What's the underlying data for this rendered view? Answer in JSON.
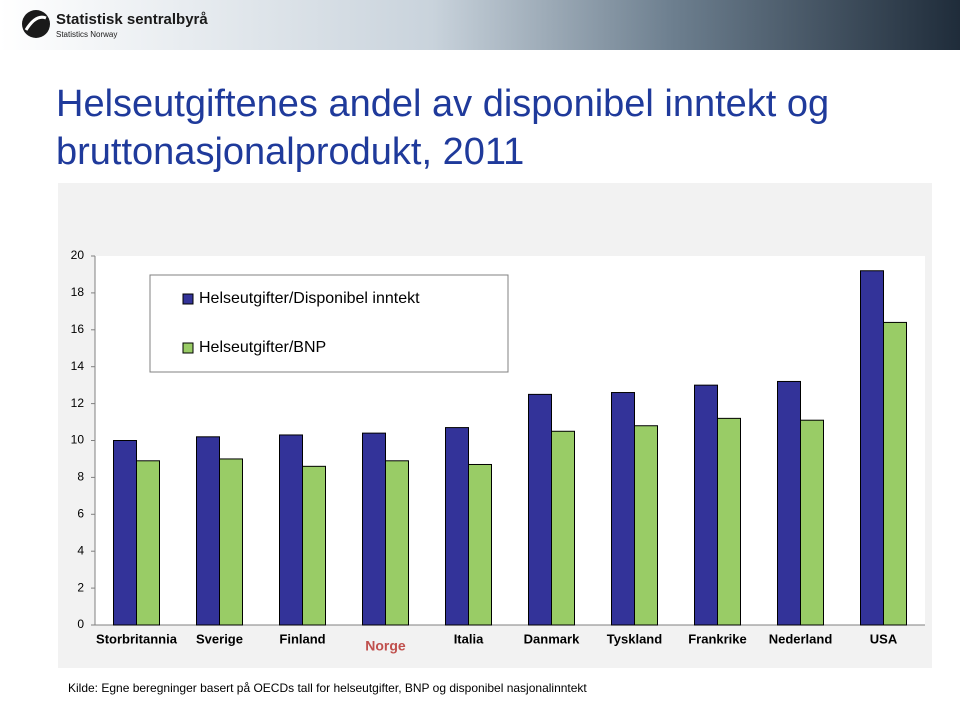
{
  "header": {
    "org_name": "Statistisk sentralbyrå",
    "org_name_en": "Statistics Norway"
  },
  "chart_data": {
    "type": "bar",
    "title": "Helseutgiftenes andel av disponibel inntekt og bruttonasjonalprodukt, 2011",
    "categories": [
      "Storbritannia",
      "Sverige",
      "Finland",
      "Norge",
      "Italia",
      "Danmark",
      "Tyskland",
      "Frankrike",
      "Nederland",
      "USA"
    ],
    "series": [
      {
        "name": "Helseutgifter/Disponibel inntekt",
        "color": "#333399",
        "values": [
          10.0,
          10.2,
          10.3,
          10.4,
          10.7,
          12.5,
          12.6,
          13.0,
          13.2,
          19.2
        ]
      },
      {
        "name": "Helseutgifter/BNP",
        "color": "#99cc66",
        "values": [
          8.9,
          9.0,
          8.6,
          8.9,
          8.7,
          10.5,
          10.8,
          11.2,
          11.1,
          16.4
        ]
      }
    ],
    "highlight": {
      "category": "Norge",
      "color": "#c0504d"
    },
    "ylim": [
      0,
      20
    ],
    "yticks": [
      0,
      2,
      4,
      6,
      8,
      10,
      12,
      14,
      16,
      18,
      20
    ],
    "grid": false,
    "legend": "top-left",
    "source": "Kilde: Egne beregninger basert på OECDs tall for helseutgifter, BNP og disponibel nasjonalinntekt"
  }
}
